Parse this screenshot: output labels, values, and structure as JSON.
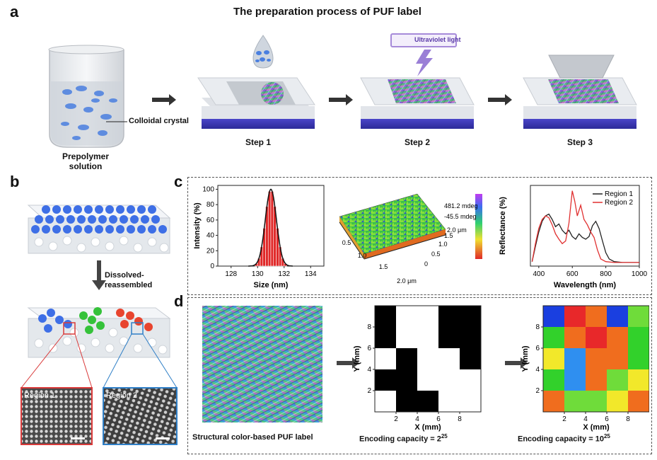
{
  "panel_a": {
    "letter": "a",
    "title": "The preparation process of PUF label",
    "prepolymer_label_1": "Prepolymer",
    "prepolymer_label_2": "solution",
    "colloidal_label": "Colloidal crystal",
    "uv_label": "Ultraviolet light",
    "steps": [
      "Step 1",
      "Step 2",
      "Step 3"
    ]
  },
  "panel_b": {
    "letter": "b",
    "arrow_label_1": "Dissolved-",
    "arrow_label_2": "reassembled",
    "region1": "Region 1",
    "region2": "Region 2",
    "region1_color": "#d93a3a",
    "region2_color": "#2f7fc7"
  },
  "panel_c": {
    "letter": "c",
    "hist": {
      "ylabel": "Intensity (%)",
      "xlabel": "Size (nm)",
      "xticks": [
        "128",
        "130",
        "132",
        "134"
      ],
      "yticks": [
        "0",
        "20",
        "40",
        "60",
        "80",
        "100"
      ]
    },
    "surface": {
      "scale_max": "481.2 mdeg",
      "scale_min": "-45.5 mdeg",
      "x_ticks": [
        "0.5",
        "1.0",
        "1.5",
        "2.0 μm"
      ],
      "y_ticks": [
        "0",
        "0.5",
        "1.0",
        "1.5",
        "2.0 μm"
      ]
    },
    "reflect": {
      "ylabel": "Reflectance (%)",
      "xlabel": "Wavelength (nm)",
      "xticks": [
        "400",
        "600",
        "800",
        "1000"
      ],
      "legend": [
        "Region 1",
        "Region 2"
      ],
      "colors": [
        "#222222",
        "#e03030"
      ]
    }
  },
  "panel_d": {
    "letter": "d",
    "label_photo": "Structural color-based PUF label",
    "label_binary_prefix": "Encoding capacity = 2",
    "label_binary_exp": "25",
    "label_color_prefix": "Encoding capacity = 10",
    "label_color_exp": "25",
    "xlabel": "X (mm)",
    "ylabel": "Y (mm)",
    "ticks": [
      "2",
      "4",
      "6",
      "8"
    ],
    "binary_grid": [
      [
        1,
        0,
        0,
        1,
        1
      ],
      [
        1,
        0,
        0,
        1,
        1
      ],
      [
        0,
        1,
        0,
        0,
        1
      ],
      [
        1,
        1,
        0,
        0,
        0
      ],
      [
        0,
        1,
        1,
        0,
        0
      ]
    ],
    "color_grid": [
      [
        "#1a3fe0",
        "#e8282a",
        "#f06d1e",
        "#1a3fe0",
        "#6fdc3a"
      ],
      [
        "#32d12b",
        "#f06d1e",
        "#e8282a",
        "#f06d1e",
        "#32d12b"
      ],
      [
        "#f2e82a",
        "#2f8ff0",
        "#f06d1e",
        "#f06d1e",
        "#32d12b"
      ],
      [
        "#32d12b",
        "#2f8ff0",
        "#f06d1e",
        "#6fdc3a",
        "#f2e82a"
      ],
      [
        "#f06d1e",
        "#6fdc3a",
        "#6fdc3a",
        "#f2e82a",
        "#f06d1e"
      ]
    ]
  }
}
